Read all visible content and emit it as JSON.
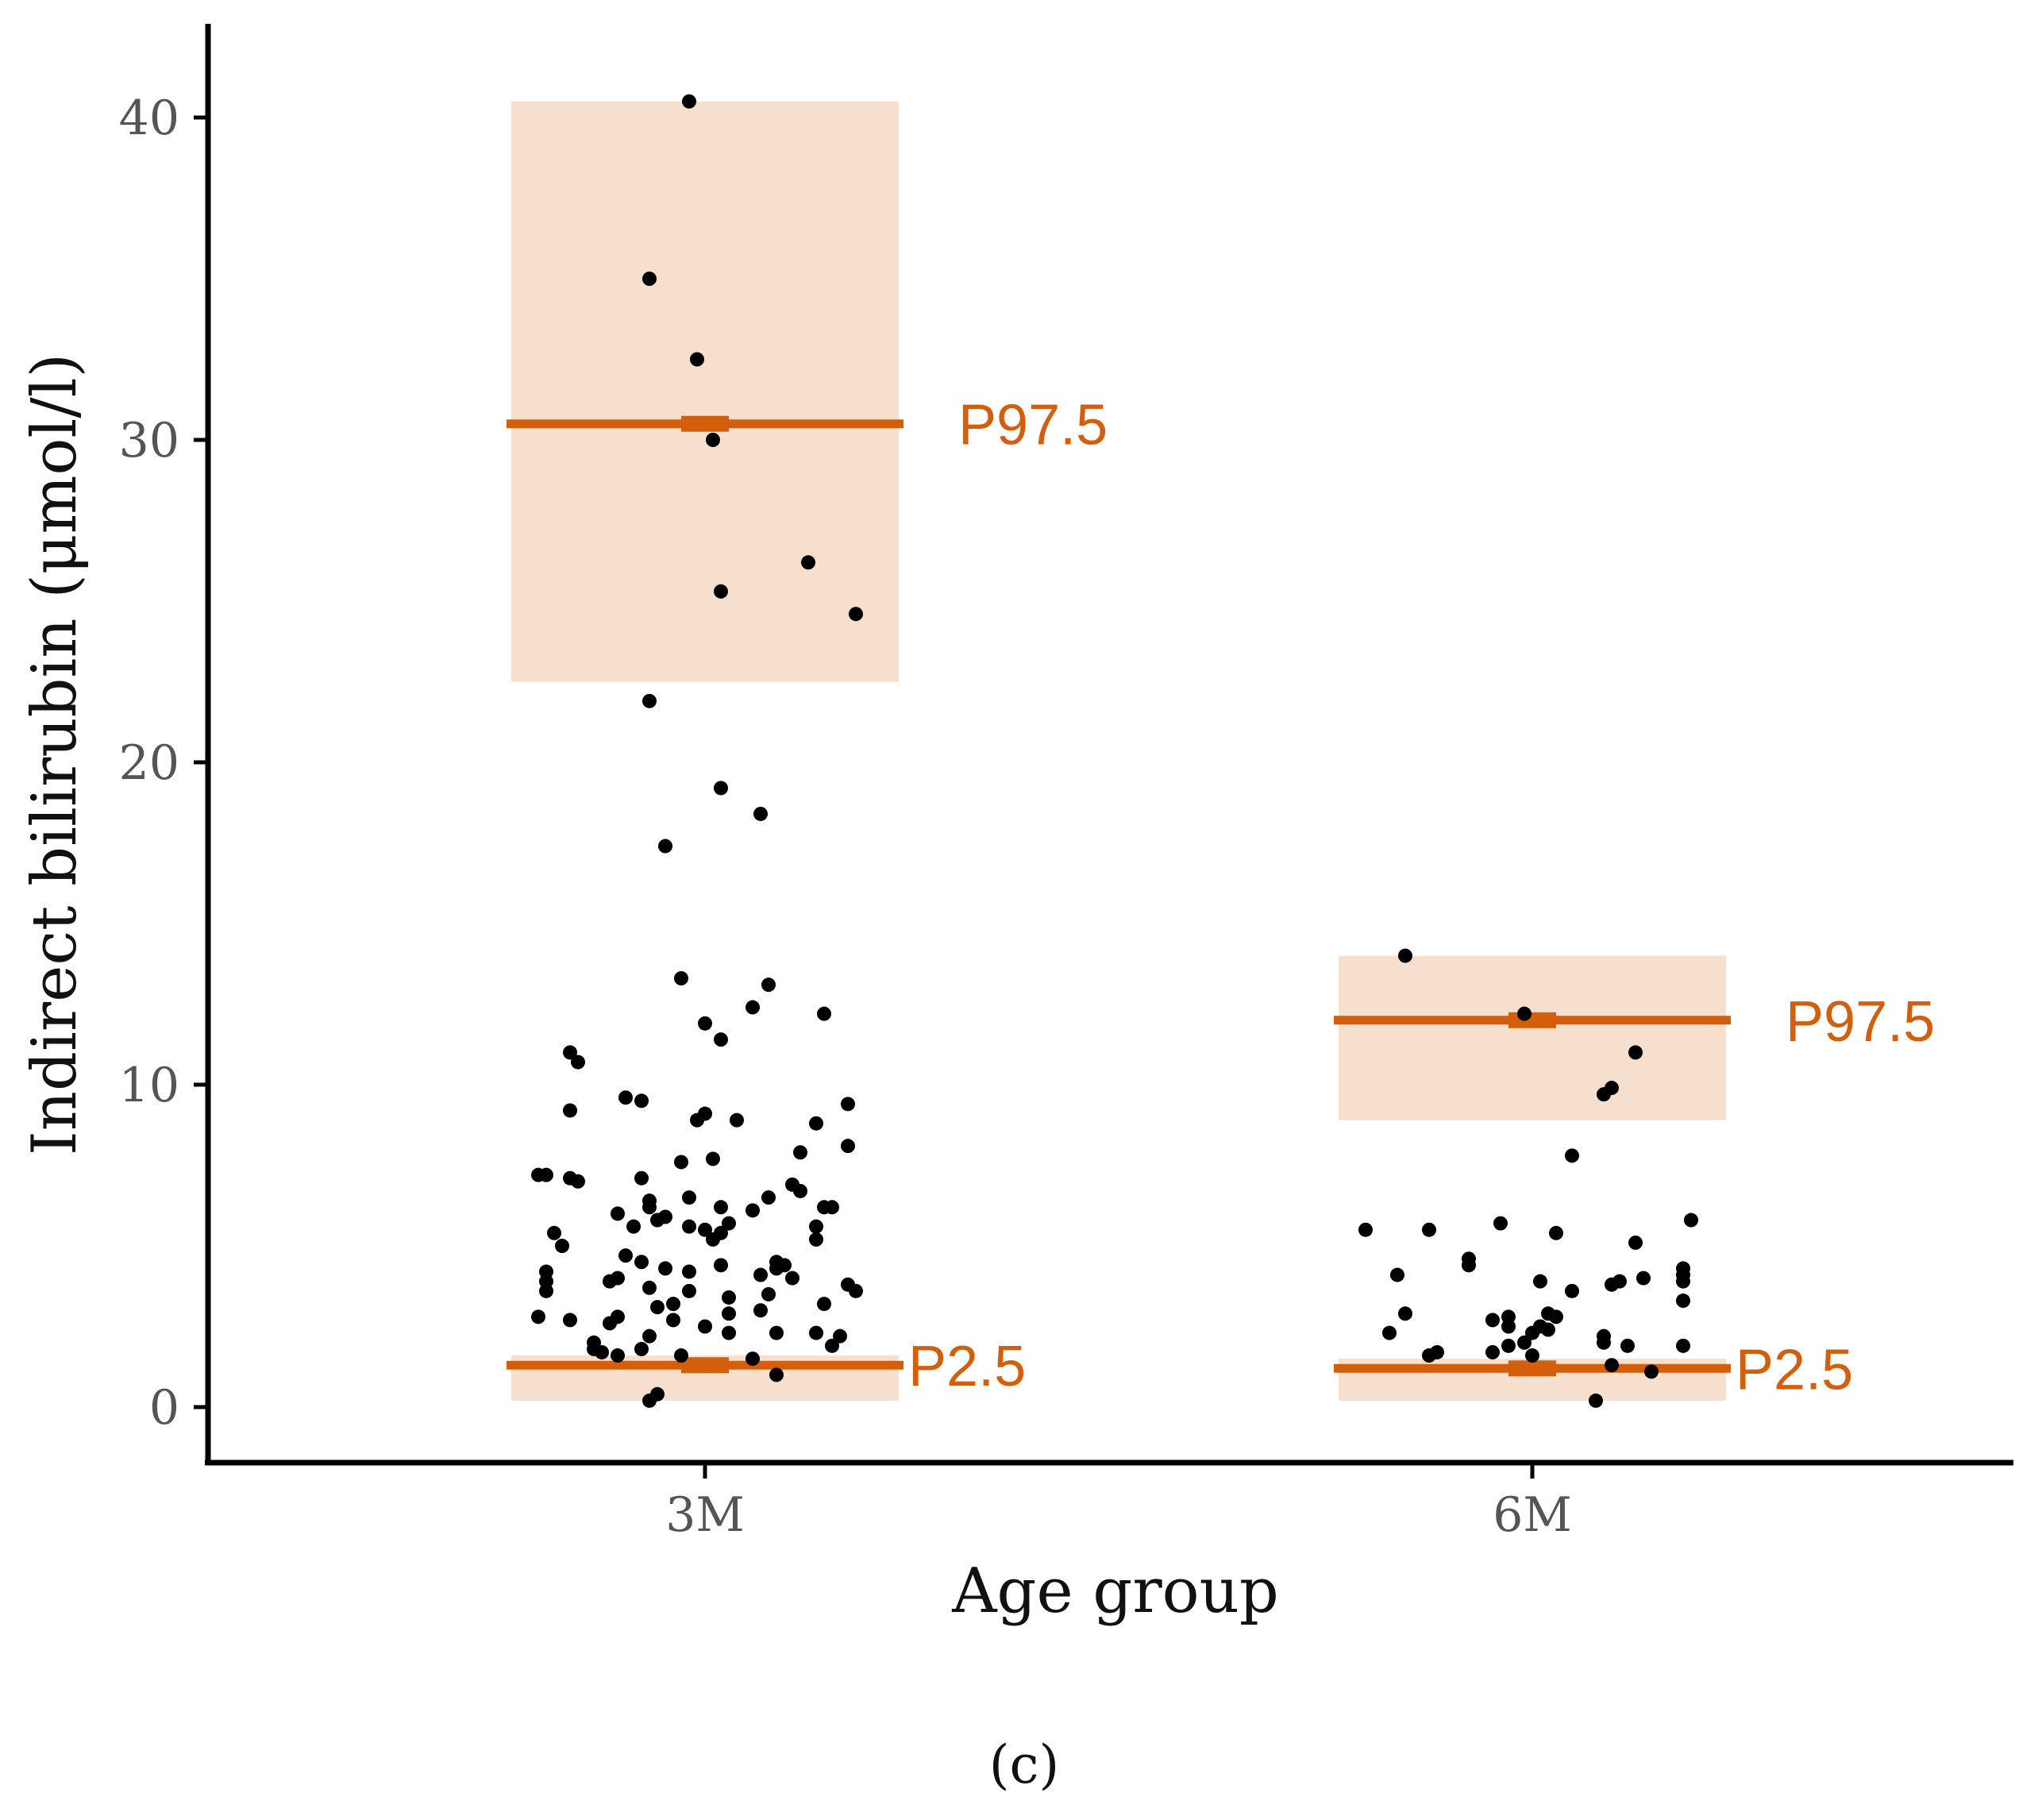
{
  "chart_data": {
    "type": "scatter",
    "title": "",
    "xlabel": "Age group",
    "ylabel": "Indirect bilirubin (μmol/l)",
    "categories": [
      "3M",
      "6M"
    ],
    "ylim": [
      -2,
      42.5
    ],
    "yticks": [
      0,
      10,
      20,
      30,
      40
    ],
    "grid": false,
    "colors": {
      "reference": "#d35f0c",
      "ci_band": "#f6dfcd",
      "points": "#000000",
      "axis": "#000000"
    },
    "reference_intervals": [
      {
        "group": "3M",
        "upper": {
          "label": "P97.5",
          "value": 30.5,
          "ci": [
            22.5,
            40.5
          ]
        },
        "lower": {
          "label": "P2.5",
          "value": 1.3,
          "ci": [
            0.2,
            1.6
          ]
        }
      },
      {
        "group": "6M",
        "upper": {
          "label": "P97.5",
          "value": 12.0,
          "ci": [
            8.9,
            14.0
          ]
        },
        "lower": {
          "label": "P2.5",
          "value": 1.2,
          "ci": [
            0.2,
            1.5
          ]
        }
      }
    ],
    "series": [
      {
        "group": "3M",
        "points": [
          [
            -0.02,
            40.5
          ],
          [
            -0.07,
            35.0
          ],
          [
            -0.01,
            32.5
          ],
          [
            0.01,
            30.0
          ],
          [
            0.02,
            25.3
          ],
          [
            0.13,
            26.2
          ],
          [
            0.19,
            24.6
          ],
          [
            -0.07,
            21.9
          ],
          [
            0.02,
            19.2
          ],
          [
            0.07,
            18.4
          ],
          [
            -0.05,
            17.4
          ],
          [
            -0.03,
            13.3
          ],
          [
            0.08,
            13.1
          ],
          [
            0.06,
            12.4
          ],
          [
            0.15,
            12.2
          ],
          [
            0.0,
            11.9
          ],
          [
            0.02,
            11.4
          ],
          [
            -0.17,
            11.0
          ],
          [
            -0.16,
            10.7
          ],
          [
            -0.1,
            9.6
          ],
          [
            -0.08,
            9.5
          ],
          [
            0.18,
            9.4
          ],
          [
            -0.17,
            9.2
          ],
          [
            0.0,
            9.1
          ],
          [
            -0.01,
            8.9
          ],
          [
            0.04,
            8.9
          ],
          [
            0.14,
            8.8
          ],
          [
            0.18,
            8.1
          ],
          [
            0.12,
            7.9
          ],
          [
            0.01,
            7.7
          ],
          [
            -0.03,
            7.6
          ],
          [
            -0.2,
            7.2
          ],
          [
            -0.21,
            7.2
          ],
          [
            -0.17,
            7.1
          ],
          [
            -0.16,
            7.0
          ],
          [
            -0.08,
            7.1
          ],
          [
            0.11,
            6.9
          ],
          [
            0.12,
            6.7
          ],
          [
            0.08,
            6.5
          ],
          [
            -0.02,
            6.5
          ],
          [
            -0.07,
            6.4
          ],
          [
            -0.07,
            6.2
          ],
          [
            0.02,
            6.2
          ],
          [
            0.06,
            6.1
          ],
          [
            0.15,
            6.2
          ],
          [
            0.16,
            6.2
          ],
          [
            -0.11,
            6.0
          ],
          [
            -0.05,
            5.9
          ],
          [
            -0.06,
            5.8
          ],
          [
            -0.09,
            5.6
          ],
          [
            0.03,
            5.7
          ],
          [
            0.0,
            5.5
          ],
          [
            0.02,
            5.4
          ],
          [
            -0.02,
            5.6
          ],
          [
            0.14,
            5.6
          ],
          [
            -0.19,
            5.4
          ],
          [
            0.14,
            5.2
          ],
          [
            0.01,
            5.2
          ],
          [
            -0.18,
            5.0
          ],
          [
            -0.1,
            4.7
          ],
          [
            -0.08,
            4.5
          ],
          [
            -0.05,
            4.3
          ],
          [
            0.02,
            4.4
          ],
          [
            -0.02,
            4.2
          ],
          [
            0.09,
            4.5
          ],
          [
            0.1,
            4.4
          ],
          [
            0.09,
            4.3
          ],
          [
            -0.2,
            4.2
          ],
          [
            -0.11,
            4.0
          ],
          [
            -0.12,
            3.9
          ],
          [
            0.07,
            4.1
          ],
          [
            0.11,
            4.0
          ],
          [
            0.18,
            3.8
          ],
          [
            -0.2,
            3.9
          ],
          [
            -0.07,
            3.7
          ],
          [
            -0.02,
            3.6
          ],
          [
            0.03,
            3.4
          ],
          [
            0.08,
            3.5
          ],
          [
            0.19,
            3.6
          ],
          [
            -0.2,
            3.6
          ],
          [
            0.15,
            3.2
          ],
          [
            -0.06,
            3.1
          ],
          [
            -0.04,
            3.2
          ],
          [
            0.07,
            3.0
          ],
          [
            0.03,
            2.9
          ],
          [
            -0.11,
            2.8
          ],
          [
            -0.21,
            2.8
          ],
          [
            -0.17,
            2.7
          ],
          [
            -0.12,
            2.6
          ],
          [
            -0.04,
            2.7
          ],
          [
            0.0,
            2.5
          ],
          [
            0.09,
            2.3
          ],
          [
            0.14,
            2.3
          ],
          [
            0.03,
            2.3
          ],
          [
            -0.07,
            2.2
          ],
          [
            0.17,
            2.2
          ],
          [
            -0.14,
            2.0
          ],
          [
            -0.08,
            1.8
          ],
          [
            0.16,
            1.9
          ],
          [
            -0.13,
            1.7
          ],
          [
            -0.14,
            1.8
          ],
          [
            -0.11,
            1.6
          ],
          [
            -0.03,
            1.6
          ],
          [
            0.06,
            1.5
          ],
          [
            0.09,
            1.0
          ],
          [
            -0.07,
            0.2
          ],
          [
            -0.06,
            0.4
          ]
        ]
      },
      {
        "group": "6M",
        "points": [
          [
            -0.16,
            14.0
          ],
          [
            -0.01,
            12.2
          ],
          [
            0.13,
            11.0
          ],
          [
            0.1,
            9.9
          ],
          [
            0.09,
            9.7
          ],
          [
            0.05,
            7.8
          ],
          [
            0.2,
            5.8
          ],
          [
            -0.21,
            5.5
          ],
          [
            -0.13,
            5.5
          ],
          [
            -0.04,
            5.7
          ],
          [
            0.03,
            5.4
          ],
          [
            0.13,
            5.1
          ],
          [
            -0.08,
            4.6
          ],
          [
            -0.08,
            4.4
          ],
          [
            -0.17,
            4.1
          ],
          [
            0.19,
            4.3
          ],
          [
            0.19,
            4.1
          ],
          [
            0.14,
            4.0
          ],
          [
            0.11,
            3.9
          ],
          [
            0.1,
            3.8
          ],
          [
            0.19,
            3.9
          ],
          [
            0.01,
            3.9
          ],
          [
            0.05,
            3.6
          ],
          [
            0.19,
            3.3
          ],
          [
            -0.16,
            2.9
          ],
          [
            -0.05,
            2.7
          ],
          [
            -0.03,
            2.8
          ],
          [
            0.02,
            2.9
          ],
          [
            0.03,
            2.8
          ],
          [
            -0.03,
            2.5
          ],
          [
            0.02,
            2.4
          ],
          [
            0.01,
            2.5
          ],
          [
            0.0,
            2.3
          ],
          [
            -0.18,
            2.3
          ],
          [
            0.09,
            2.2
          ],
          [
            0.09,
            2.0
          ],
          [
            -0.01,
            2.0
          ],
          [
            -0.03,
            1.9
          ],
          [
            0.12,
            1.9
          ],
          [
            0.19,
            1.9
          ],
          [
            -0.05,
            1.7
          ],
          [
            -0.12,
            1.7
          ],
          [
            -0.13,
            1.6
          ],
          [
            0.0,
            1.6
          ],
          [
            0.1,
            1.3
          ],
          [
            0.15,
            1.1
          ],
          [
            0.08,
            0.2
          ]
        ]
      }
    ]
  },
  "panel_label": "(c)"
}
